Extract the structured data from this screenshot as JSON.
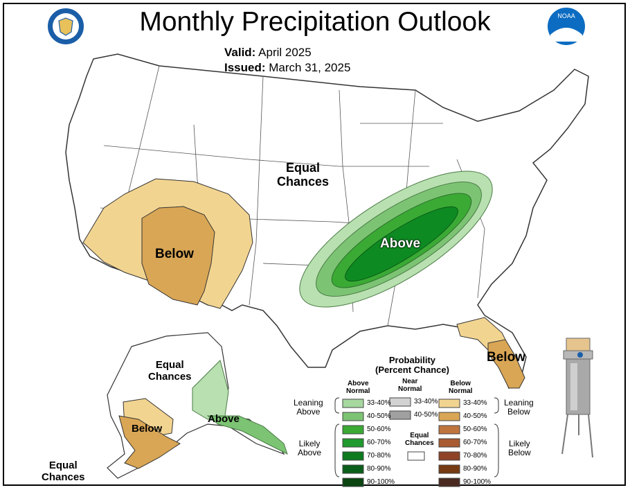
{
  "title": "Monthly Precipitation Outlook",
  "valid_label": "Valid:",
  "valid_value": "April 2025",
  "issued_label": "Issued:",
  "issued_value": "March 31, 2025",
  "logos": {
    "left": "doc-seal-icon",
    "right": "noaa-logo-icon"
  },
  "map_labels": {
    "conus_equal": "Equal\nChances",
    "conus_below": "Below",
    "conus_above": "Above",
    "florida_below": "Below",
    "ak_equal_top": "Equal\nChances",
    "ak_below": "Below",
    "ak_above": "Above",
    "ak_equal_bottom": "Equal\nChances"
  },
  "legend": {
    "title": "Probability\n(Percent Chance)",
    "col_above": "Above\nNormal",
    "col_near": "Near\nNormal",
    "col_below": "Below\nNormal",
    "leaning_above": "Leaning\nAbove",
    "likely_above": "Likely\nAbove",
    "leaning_below": "Leaning\nBelow",
    "likely_below": "Likely\nBelow",
    "equal_chances": "Equal\nChances",
    "above_bins": [
      {
        "label": "33-40%",
        "color": "#a6d89f"
      },
      {
        "label": "40-50%",
        "color": "#7cc474"
      },
      {
        "label": "50-60%",
        "color": "#3aaa35"
      },
      {
        "label": "60-70%",
        "color": "#1f9a2e"
      },
      {
        "label": "70-80%",
        "color": "#0e7a1e"
      },
      {
        "label": "80-90%",
        "color": "#0b5e1a"
      },
      {
        "label": "90-100%",
        "color": "#0a4512"
      }
    ],
    "near_bins": [
      {
        "label": "33-40%",
        "color": "#d2d2d2"
      },
      {
        "label": "40-50%",
        "color": "#a0a0a0"
      }
    ],
    "below_bins": [
      {
        "label": "33-40%",
        "color": "#f2d491"
      },
      {
        "label": "40-50%",
        "color": "#d9a655"
      },
      {
        "label": "50-60%",
        "color": "#c0753f"
      },
      {
        "label": "60-70%",
        "color": "#a85a32"
      },
      {
        "label": "70-80%",
        "color": "#8f4327"
      },
      {
        "label": "80-90%",
        "color": "#763b12"
      },
      {
        "label": "90-100%",
        "color": "#4a2a20"
      }
    ]
  },
  "colors": {
    "below_light": "#f2d491",
    "below_mid": "#d9a655",
    "above_light": "#b8e0b0",
    "above_mid": "#7cc474",
    "above_deep": "#3aaa35",
    "above_core": "#0e8a22"
  },
  "rain_gauge_icon": "rain-gauge-icon"
}
